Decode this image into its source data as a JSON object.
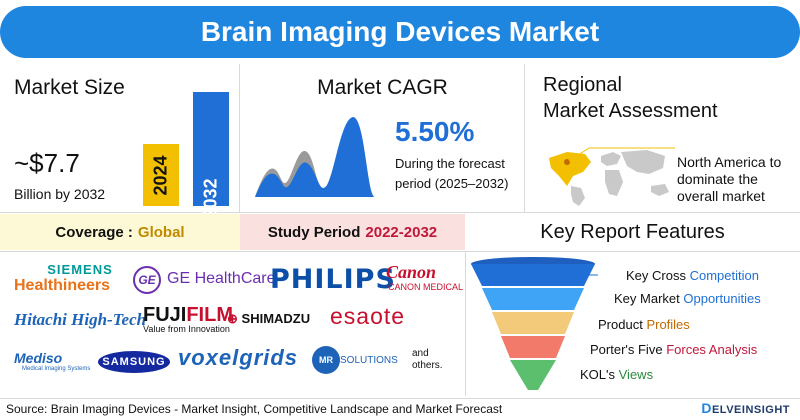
{
  "header": {
    "title": "Brain Imaging Devices Market"
  },
  "market_size": {
    "title": "Market Size",
    "value": "~$7.7",
    "subtitle": "Billion by 2032",
    "bars": [
      {
        "label": "2024",
        "color": "#f2c000"
      },
      {
        "label": "2032",
        "color": "#1f6fd6"
      }
    ]
  },
  "cagr": {
    "title": "Market CAGR",
    "value": "5.50%",
    "desc_line1": "During the forecast",
    "desc_line2": "period (2025–2032)"
  },
  "regional": {
    "title_line1": "Regional",
    "title_line2": "Market Assessment",
    "text_line1": "North America to",
    "text_line2": "dominate the",
    "text_line3": "overall market"
  },
  "coverage": {
    "label": "Coverage :",
    "value": "Global"
  },
  "study_period": {
    "label": "Study Period",
    "value": "2022-2032"
  },
  "key_features": {
    "title": "Key Report Features",
    "items": [
      {
        "prefix": "Key Cross",
        "highlight": "Competition"
      },
      {
        "prefix": "Key Market",
        "highlight": "Opportunities"
      },
      {
        "prefix": "Product",
        "highlight": "Profiles"
      },
      {
        "prefix": "Porter's Five",
        "highlight": "Forces Analysis"
      },
      {
        "prefix": "KOL's",
        "highlight": "Views"
      }
    ]
  },
  "companies": {
    "siemens": "SIEMENS",
    "healthineers": "Healthineers",
    "ge_mark": "GE",
    "ge": "GE HealthCare",
    "philips": "PHILIPS",
    "canon": "Canon",
    "canon_medical": "CANON MEDICAL",
    "hitachi": "Hitachi High-Tech",
    "fuji_a": "FUJI",
    "fuji_b": "FILM",
    "fuji_sub": "Value from Innovation",
    "shimadzu_mark": "⊕",
    "shimadzu": "SHIMADZU",
    "esaote": "esaote",
    "mediso": "Mediso",
    "mediso_sub": "Medical Imaging Systems",
    "samsung": "SAMSUNG",
    "voxelgrids": "voxelgrids",
    "mr_mark": "MR",
    "mr": "SOLUTIONS",
    "others": "and others."
  },
  "footer": {
    "source": "Source: Brain Imaging Devices - Market Insight, Competitive Landscape and Market Forecast",
    "brand_d": "D",
    "brand": "ELVEINSIGHT"
  },
  "colors": {
    "primary": "#1f86e0",
    "accent_yellow": "#f2c000",
    "accent_red": "#c0183a"
  }
}
